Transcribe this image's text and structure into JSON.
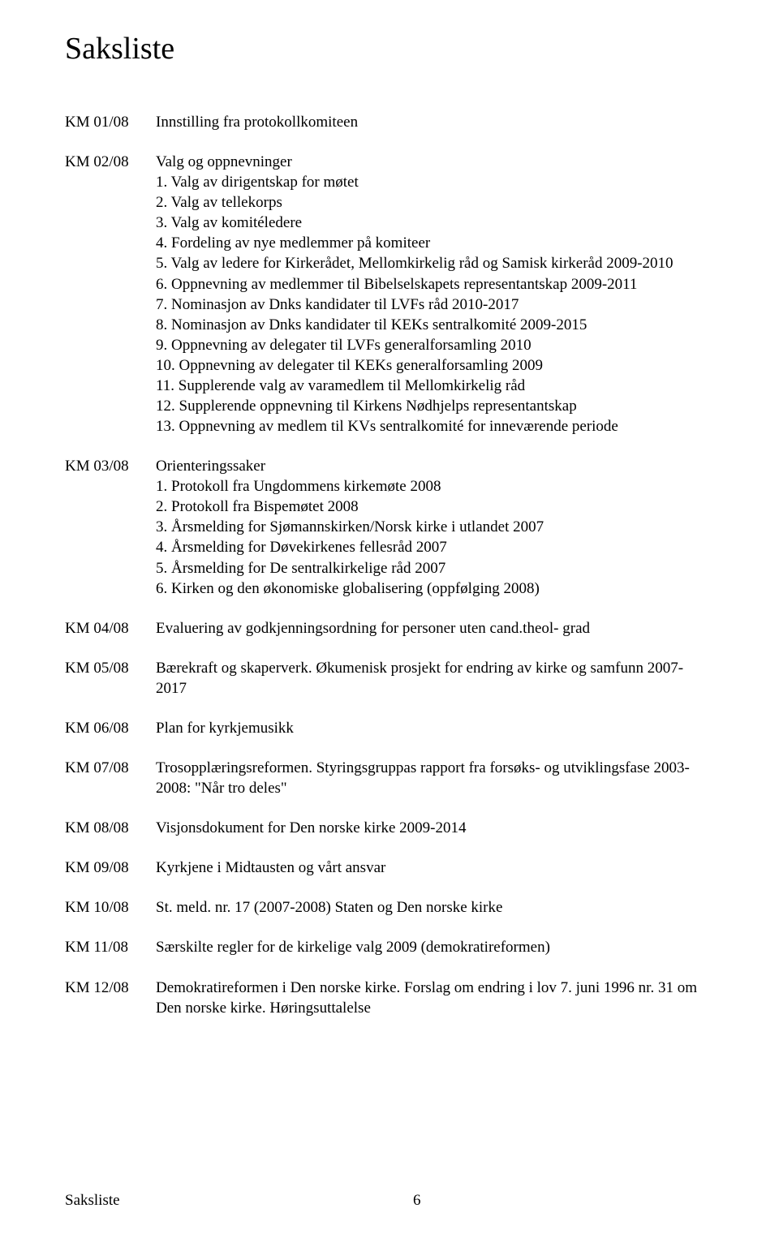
{
  "title": "Saksliste",
  "items": {
    "km01": {
      "code": "KM 01/08",
      "heading": "Innstilling fra protokollkomiteen"
    },
    "km02": {
      "code": "KM 02/08",
      "heading": "Valg og oppnevninger",
      "list": [
        "1. Valg av dirigentskap for møtet",
        "2. Valg av tellekorps",
        "3. Valg av komitéledere",
        "4. Fordeling av nye medlemmer på komiteer",
        "5. Valg av ledere for Kirkerådet, Mellomkirkelig råd og Samisk kirkeråd 2009-2010",
        "6. Oppnevning av medlemmer til Bibelselskapets representantskap 2009-2011",
        "7. Nominasjon av Dnks kandidater til LVFs råd 2010-2017",
        "8. Nominasjon av Dnks kandidater til KEKs sentralkomité 2009-2015",
        "9. Oppnevning av delegater til LVFs generalforsamling 2010",
        "10. Oppnevning av delegater til KEKs generalforsamling 2009",
        "11. Supplerende valg av varamedlem til Mellomkirkelig råd",
        "12. Supplerende oppnevning til Kirkens Nødhjelps representantskap",
        "13. Oppnevning av medlem til KVs sentralkomité for inneværende periode"
      ]
    },
    "km03": {
      "code": "KM 03/08",
      "heading": "Orienteringssaker",
      "list": [
        "1.  Protokoll fra Ungdommens kirkemøte 2008",
        "2.  Protokoll fra Bispemøtet 2008",
        "3.  Årsmelding for Sjømannskirken/Norsk kirke i utlandet 2007",
        "4.  Årsmelding for Døvekirkenes fellesråd 2007",
        "5.  Årsmelding for De sentralkirkelige råd 2007",
        "6.  Kirken og den økonomiske globalisering (oppfølging 2008)"
      ]
    },
    "km04": {
      "code": "KM 04/08",
      "heading": "Evaluering av godkjenningsordning for personer uten cand.theol- grad"
    },
    "km05": {
      "code": "KM 05/08",
      "heading": "Bærekraft og skaperverk. Økumenisk prosjekt for endring av kirke og samfunn 2007-2017"
    },
    "km06": {
      "code": "KM 06/08",
      "heading": "Plan for kyrkjemusikk"
    },
    "km07": {
      "code": "KM 07/08",
      "heading": "Trosopplæringsreformen. Styringsgruppas rapport fra forsøks- og utviklingsfase 2003-2008: \"Når tro deles\""
    },
    "km08": {
      "code": "KM 08/08",
      "heading": "Visjonsdokument for Den norske kirke 2009-2014"
    },
    "km09": {
      "code": "KM 09/08",
      "heading": "Kyrkjene i Midtausten og vårt ansvar"
    },
    "km10": {
      "code": "KM 10/08",
      "heading": "St. meld. nr. 17 (2007-2008) Staten og Den norske kirke"
    },
    "km11": {
      "code": "KM 11/08",
      "heading": "Særskilte regler for de kirkelige valg 2009 (demokratireformen)"
    },
    "km12": {
      "code": "KM 12/08",
      "heading": "Demokratireformen i Den norske kirke. Forslag om endring i lov 7. juni 1996 nr. 31 om Den norske kirke. Høringsuttalelse"
    }
  },
  "footer": {
    "left": "Saksliste",
    "page": "6"
  }
}
